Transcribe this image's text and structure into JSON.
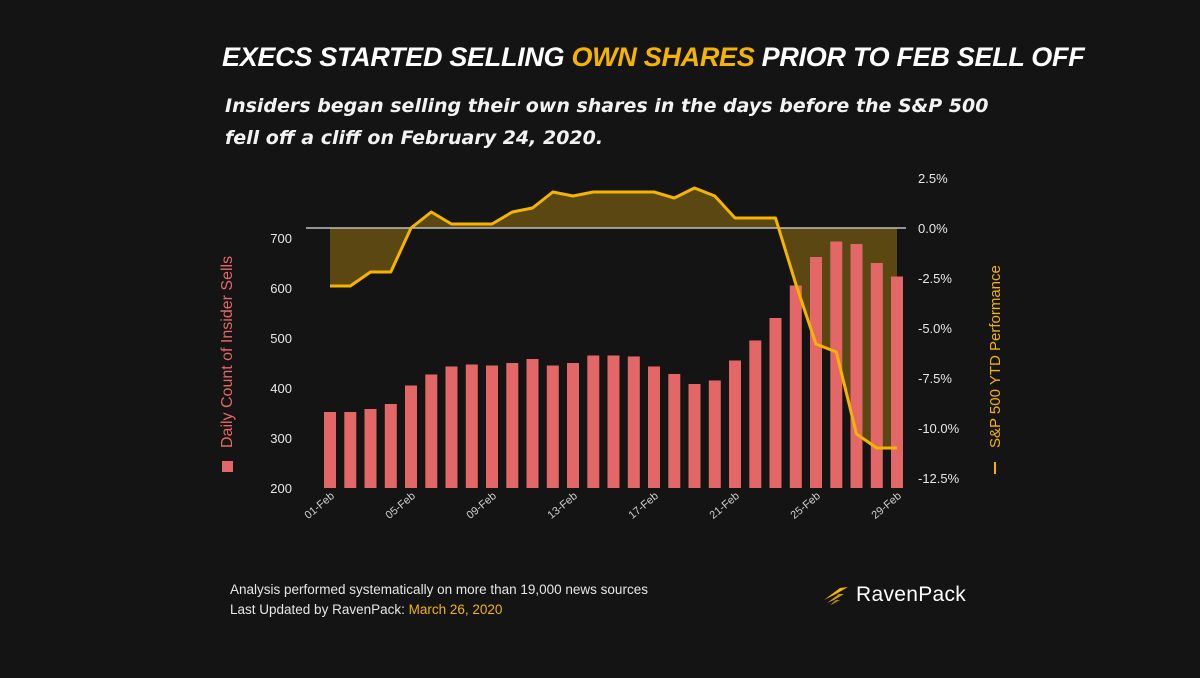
{
  "title": {
    "part1": "EXECS STARTED SELLING ",
    "highlight": "OWN SHARES",
    "part2": " PRIOR TO FEB SELL OFF"
  },
  "subtitle": "Insiders began selling their own shares in the days before the S&P 500 fell off a cliff on February 24, 2020.",
  "footer": {
    "line1": "Analysis performed systematically on more than 19,000 news sources",
    "line2_prefix": "Last Updated by RavenPack: ",
    "line2_date": "March 26, 2020"
  },
  "logo": {
    "text": "RavenPack",
    "icon": "ravenpack-feather-icon"
  },
  "colors": {
    "bars": "#e46767",
    "line": "#f5b400",
    "area": "#5a4712",
    "zero_line": "#bfbfbf",
    "background": "#141414"
  },
  "chart_data": {
    "type": "bar",
    "dates": [
      "01-Feb",
      "02-Feb",
      "03-Feb",
      "04-Feb",
      "05-Feb",
      "06-Feb",
      "07-Feb",
      "08-Feb",
      "09-Feb",
      "10-Feb",
      "11-Feb",
      "12-Feb",
      "13-Feb",
      "14-Feb",
      "15-Feb",
      "16-Feb",
      "17-Feb",
      "18-Feb",
      "19-Feb",
      "20-Feb",
      "21-Feb",
      "22-Feb",
      "23-Feb",
      "24-Feb",
      "25-Feb",
      "26-Feb",
      "27-Feb",
      "28-Feb",
      "29-Feb"
    ],
    "x_tick_labels": [
      "01-Feb",
      "05-Feb",
      "09-Feb",
      "13-Feb",
      "17-Feb",
      "21-Feb",
      "25-Feb",
      "29-Feb"
    ],
    "series": [
      {
        "name": "Daily Count of Insider Sells",
        "type": "bar",
        "axis": "left",
        "values": [
          352,
          352,
          358,
          368,
          405,
          427,
          443,
          447,
          445,
          450,
          458,
          445,
          450,
          465,
          465,
          463,
          443,
          428,
          408,
          415,
          455,
          495,
          540,
          605,
          662,
          693,
          688,
          650,
          623
        ]
      },
      {
        "name": "S&P 500 YTD Performance",
        "type": "area-line",
        "axis": "right",
        "values": [
          -2.9,
          -2.9,
          -2.2,
          -2.2,
          0.0,
          0.8,
          0.2,
          0.2,
          0.2,
          0.8,
          1.0,
          1.8,
          1.6,
          1.8,
          1.8,
          1.8,
          1.8,
          1.5,
          2.0,
          1.6,
          0.5,
          0.5,
          0.5,
          -2.8,
          -5.8,
          -6.2,
          -10.3,
          -11.0,
          -11.0
        ]
      }
    ],
    "y_left": {
      "label": "Daily Count of Insider Sells",
      "ticks": [
        "200",
        "300",
        "400",
        "500",
        "600",
        "700"
      ],
      "min": 200,
      "max": 750
    },
    "y_right": {
      "label": "S&P 500 YTD Performance",
      "ticks": [
        "2.5%",
        "0.0%",
        "-2.5%",
        "-5.0%",
        "-7.5%",
        "-10.0%",
        "-12.5%"
      ],
      "min": -12.5,
      "max": 2.5
    },
    "grid": false,
    "legend": "axis-labels"
  }
}
